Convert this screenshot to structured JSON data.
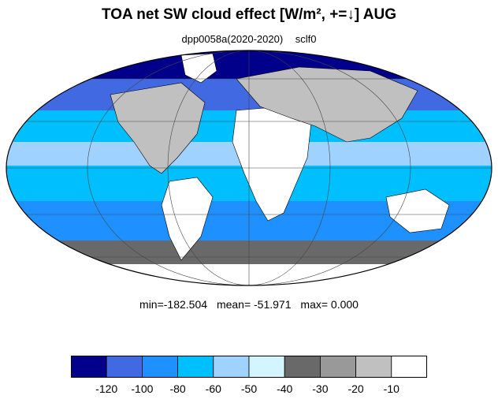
{
  "title": "TOA net SW cloud effect [W/m², +=↓]  AUG",
  "subtitle": {
    "experiment": "dpp0058a(2020-2020)",
    "variable": "sclf0"
  },
  "stats": {
    "min": "min=-182.504",
    "mean": "mean= -51.971",
    "max": "max=   0.000"
  },
  "colorbar": {
    "colors": [
      "#00008b",
      "#4169e1",
      "#1e90ff",
      "#00bfff",
      "#a0d2ff",
      "#d2f5ff",
      "#696969",
      "#999999",
      "#c0c0c0",
      "#ffffff"
    ],
    "ticks": [
      "-120",
      "-100",
      "-80",
      "-60",
      "-50",
      "-40",
      "-30",
      "-20",
      "-10"
    ]
  },
  "map": {
    "projection": "mollweide",
    "colors": {
      "ocean": "#5cb8f0",
      "land": "#ffffff",
      "coast": "#000000"
    }
  }
}
